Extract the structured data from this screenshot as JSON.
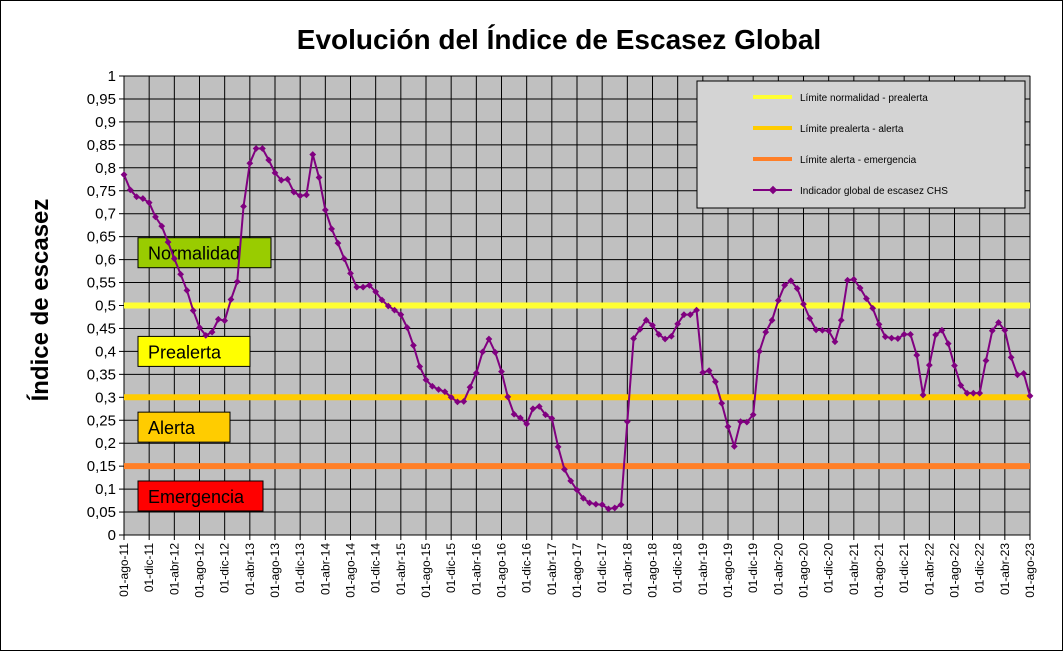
{
  "chart_data": {
    "type": "line",
    "title": "Evolución del Índice de Escasez Global",
    "ylabel": "Índice de escasez",
    "xlabel": "",
    "ylim": [
      0,
      1
    ],
    "yticks": [
      "0",
      "0,05",
      "0,1",
      "0,15",
      "0,2",
      "0,25",
      "0,3",
      "0,35",
      "0,4",
      "0,45",
      "0,5",
      "0,55",
      "0,6",
      "0,65",
      "0,7",
      "0,75",
      "0,8",
      "0,85",
      "0,9",
      "0,95",
      "1"
    ],
    "xticks": [
      "01-ago-11",
      "01-dic-11",
      "01-abr-12",
      "01-ago-12",
      "01-dic-12",
      "01-abr-13",
      "01-ago-13",
      "01-dic-13",
      "01-abr-14",
      "01-ago-14",
      "01-dic-14",
      "01-abr-15",
      "01-ago-15",
      "01-dic-15",
      "01-abr-16",
      "01-ago-16",
      "01-dic-16",
      "01-abr-17",
      "01-ago-17",
      "01-dic-17",
      "01-abr-18",
      "01-ago-18",
      "01-dic-18",
      "01-abr-19",
      "01-ago-19",
      "01-dic-19",
      "01-abr-20",
      "01-ago-20",
      "01-dic-20",
      "01-abr-21",
      "01-ago-21",
      "01-dic-21",
      "01-abr-22",
      "01-ago-22",
      "01-dic-22",
      "01-abr-23",
      "01-ago-23"
    ],
    "grid": true,
    "legend_position": "top-right",
    "thresholds": [
      {
        "name": "Límite normalidad - prealerta",
        "value": 0.5,
        "color": "#FFFF33"
      },
      {
        "name": "Límite prealerta - alerta",
        "value": 0.3,
        "color": "#FFCC00"
      },
      {
        "name": "Límite alerta - emergencia",
        "value": 0.15,
        "color": "#FF7F27"
      }
    ],
    "zones": [
      {
        "label": "Normalidad",
        "color": "#99CC00",
        "y": 0.615
      },
      {
        "label": "Prealerta",
        "color": "#FFFF00",
        "y": 0.4
      },
      {
        "label": "Alerta",
        "color": "#FFCC00",
        "y": 0.235
      },
      {
        "label": "Emergencia",
        "color": "#FF0000",
        "y": 0.085
      }
    ],
    "series": [
      {
        "name": "Indicador global de escasez CHS",
        "color": "#800080",
        "values": [
          0.785,
          0.752,
          0.737,
          0.733,
          0.724,
          0.693,
          0.673,
          0.638,
          0.602,
          0.568,
          0.533,
          0.489,
          0.452,
          0.435,
          0.442,
          0.47,
          0.467,
          0.513,
          0.552,
          0.716,
          0.81,
          0.842,
          0.842,
          0.817,
          0.789,
          0.773,
          0.775,
          0.747,
          0.739,
          0.741,
          0.829,
          0.779,
          0.708,
          0.667,
          0.636,
          0.602,
          0.57,
          0.54,
          0.54,
          0.544,
          0.53,
          0.512,
          0.499,
          0.49,
          0.48,
          0.452,
          0.413,
          0.367,
          0.338,
          0.324,
          0.317,
          0.312,
          0.3,
          0.29,
          0.291,
          0.322,
          0.353,
          0.399,
          0.427,
          0.398,
          0.356,
          0.301,
          0.263,
          0.255,
          0.242,
          0.275,
          0.28,
          0.262,
          0.254,
          0.192,
          0.143,
          0.118,
          0.098,
          0.08,
          0.07,
          0.067,
          0.066,
          0.057,
          0.059,
          0.066,
          0.247,
          0.428,
          0.448,
          0.468,
          0.457,
          0.437,
          0.427,
          0.433,
          0.46,
          0.48,
          0.48,
          0.49,
          0.354,
          0.358,
          0.334,
          0.287,
          0.236,
          0.193,
          0.247,
          0.246,
          0.262,
          0.4,
          0.442,
          0.468,
          0.511,
          0.544,
          0.554,
          0.537,
          0.503,
          0.472,
          0.447,
          0.446,
          0.445,
          0.421,
          0.468,
          0.555,
          0.557,
          0.538,
          0.515,
          0.494,
          0.459,
          0.432,
          0.429,
          0.428,
          0.437,
          0.437,
          0.392,
          0.305,
          0.37,
          0.436,
          0.446,
          0.417,
          0.369,
          0.326,
          0.309,
          0.309,
          0.309,
          0.38,
          0.445,
          0.463,
          0.446,
          0.387,
          0.349,
          0.352,
          0.303
        ]
      }
    ]
  }
}
